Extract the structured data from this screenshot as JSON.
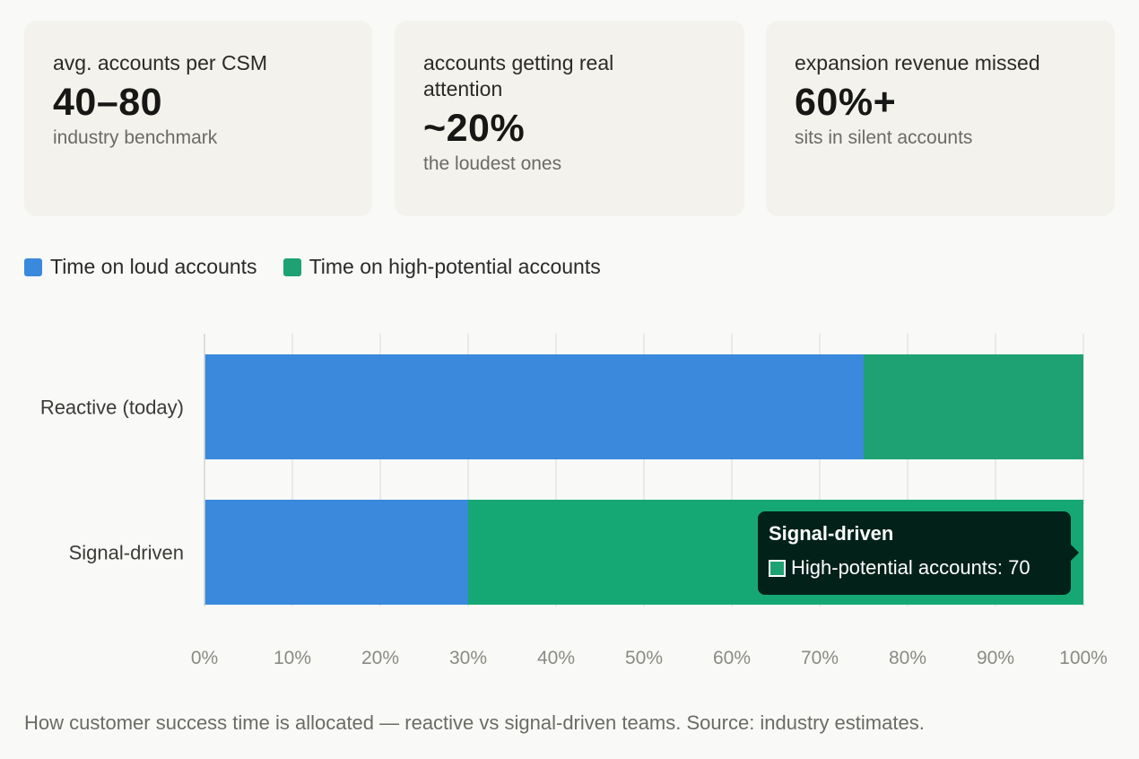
{
  "stats": [
    {
      "label": "avg. accounts per CSM",
      "value": "40–80",
      "sub": "industry benchmark"
    },
    {
      "label": "accounts getting real attention",
      "value": "~20%",
      "sub": "the loudest ones"
    },
    {
      "label": "expansion revenue missed",
      "value": "60%+",
      "sub": "sits in silent accounts"
    }
  ],
  "chart_data": {
    "type": "bar",
    "orientation": "horizontal",
    "stacked": true,
    "categories": [
      "Reactive (today)",
      "Signal-driven"
    ],
    "series": [
      {
        "name": "Time on loud accounts",
        "values": [
          75,
          30
        ],
        "color": "#3a89dd"
      },
      {
        "name": "Time on high-potential accounts",
        "values": [
          25,
          70
        ],
        "color": "#1ea173"
      }
    ],
    "xlim": [
      0,
      100
    ],
    "xticks": [
      "0%",
      "10%",
      "20%",
      "30%",
      "40%",
      "50%",
      "60%",
      "70%",
      "80%",
      "90%",
      "100%"
    ],
    "legend": "top-left",
    "grid": true
  },
  "tooltip": {
    "title": "Signal-driven",
    "label": "High-potential accounts: 70",
    "swatch_color": "#1ea173"
  },
  "caption": "How customer success time is allocated — reactive vs signal-driven teams. Source: industry estimates."
}
